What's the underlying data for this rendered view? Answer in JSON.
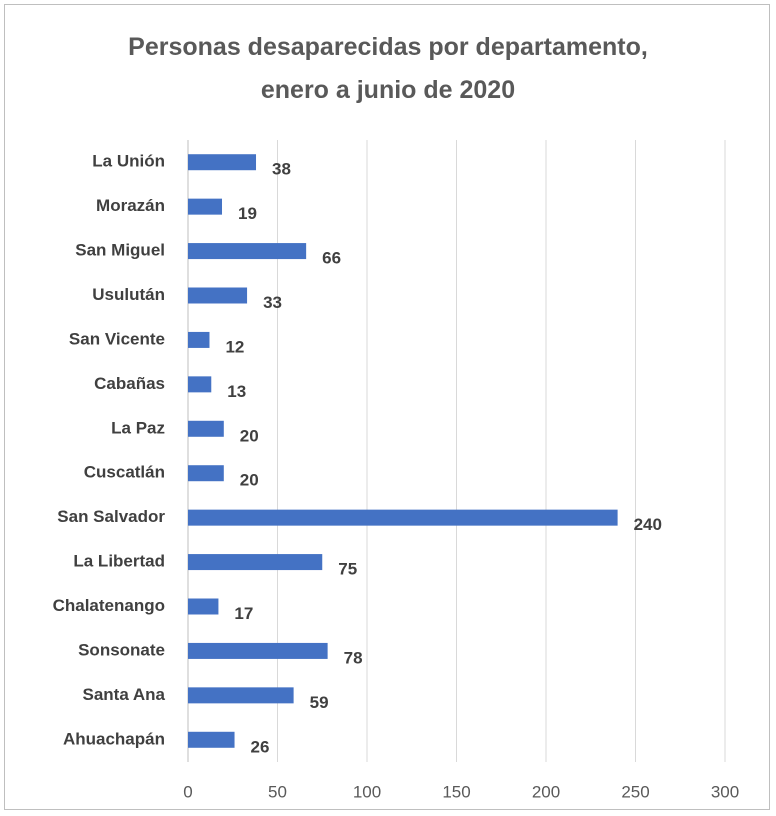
{
  "chart_data": {
    "type": "bar",
    "orientation": "horizontal",
    "title": "Personas desaparecidas por departamento, enero a junio de 2020",
    "categories": [
      "La Unión",
      "Morazán",
      "San Miguel",
      "Usulután",
      "San Vicente",
      "Cabañas",
      "La Paz",
      "Cuscatlán",
      "San Salvador",
      "La Libertad",
      "Chalatenango",
      "Sonsonate",
      "Santa Ana",
      "Ahuachapán"
    ],
    "values": [
      38,
      19,
      66,
      33,
      12,
      13,
      20,
      20,
      240,
      75,
      17,
      78,
      59,
      26
    ],
    "color": "#4472c4",
    "xlim": [
      0,
      300
    ],
    "xticks": [
      0,
      50,
      100,
      150,
      200,
      250,
      300
    ],
    "grid": true
  }
}
